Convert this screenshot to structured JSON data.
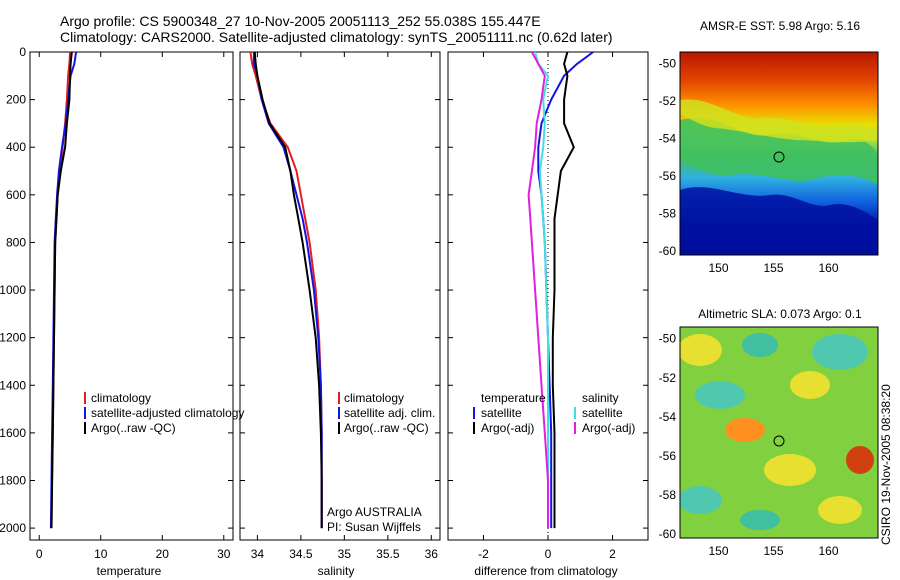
{
  "title": {
    "line1": "Argo profile: CS 5900348_27 10-Nov-2005 20051113_252 55.038S 155.447E",
    "line2": "Climatology: CARS2000. Satellite-adjusted climatology: synTS_20051111.nc (0.62d later)"
  },
  "colors": {
    "climatology": "#e02020",
    "satellite": "#1414e6",
    "argo": "#000000",
    "sal_satellite": "#40e0e0",
    "sal_argo": "#e020e0"
  },
  "chart_data": [
    {
      "type": "line",
      "name": "temperature",
      "xlabel": "temperature",
      "xlim": [
        -1.5,
        31.5
      ],
      "xticks": [
        "0",
        "10",
        "20",
        "30"
      ],
      "ylim": [
        0,
        2050
      ],
      "yticks": [
        "0",
        "200",
        "400",
        "600",
        "800",
        "1000",
        "1200",
        "1400",
        "1600",
        "1800",
        "2000"
      ],
      "legend": [
        "climatology",
        "satellite-adjusted climatology",
        "Argo(..raw -QC)"
      ],
      "series": [
        {
          "label": "climatology",
          "color_key": "climatology",
          "x": [
            5.0,
            4.9,
            4.7,
            4.5,
            4.2,
            3.8,
            3.4,
            3.0,
            2.8,
            2.6,
            2.5,
            2.4,
            2.3,
            2.2,
            2.1,
            2.0
          ],
          "y": [
            0,
            50,
            100,
            200,
            300,
            400,
            500,
            600,
            700,
            800,
            1000,
            1200,
            1400,
            1600,
            1800,
            2000
          ]
        },
        {
          "label": "satellite-adjusted climatology",
          "color_key": "satellite",
          "x": [
            6.0,
            5.7,
            5.1,
            4.7,
            4.3,
            3.7,
            3.2,
            2.9,
            2.7,
            2.5,
            2.4,
            2.3,
            2.2,
            2.1,
            2.0,
            1.9
          ],
          "y": [
            0,
            50,
            100,
            200,
            300,
            400,
            500,
            600,
            700,
            800,
            1000,
            1200,
            1400,
            1600,
            1800,
            2000
          ]
        },
        {
          "label": "Argo(..raw -QC)",
          "color_key": "argo",
          "x": [
            5.3,
            5.1,
            5.0,
            4.9,
            4.5,
            4.2,
            3.5,
            3.0,
            2.8,
            2.6,
            2.5,
            2.4,
            2.3,
            2.2,
            2.1,
            2.0
          ],
          "y": [
            0,
            50,
            100,
            200,
            300,
            400,
            500,
            600,
            700,
            800,
            1000,
            1200,
            1400,
            1600,
            1800,
            2000
          ]
        }
      ]
    },
    {
      "type": "line",
      "name": "salinity",
      "xlabel": "salinity",
      "xlim": [
        33.8,
        36.1
      ],
      "xticks": [
        "34",
        "34.5",
        "35",
        "35.5",
        "36"
      ],
      "ylim": [
        0,
        2050
      ],
      "legend": [
        "climatology",
        "satellite adj. clim.",
        "Argo(..raw -QC)"
      ],
      "annotations": [
        "Argo AUSTRALIA",
        "PI: Susan Wijffels"
      ],
      "series": [
        {
          "label": "climatology",
          "color_key": "climatology",
          "x": [
            33.92,
            33.94,
            33.98,
            34.05,
            34.15,
            34.35,
            34.45,
            34.5,
            34.55,
            34.6,
            34.67,
            34.71,
            34.73,
            34.74,
            34.74,
            34.74
          ],
          "y": [
            0,
            50,
            100,
            200,
            300,
            400,
            500,
            600,
            700,
            800,
            1000,
            1200,
            1400,
            1600,
            1800,
            2000
          ]
        },
        {
          "label": "satellite adj. clim.",
          "color_key": "satellite",
          "x": [
            33.96,
            33.96,
            34.0,
            34.05,
            34.13,
            34.3,
            34.38,
            34.45,
            34.52,
            34.57,
            34.65,
            34.7,
            34.73,
            34.74,
            34.74,
            34.74
          ],
          "y": [
            0,
            50,
            100,
            200,
            300,
            400,
            500,
            600,
            700,
            800,
            1000,
            1200,
            1400,
            1600,
            1800,
            2000
          ]
        },
        {
          "label": "Argo(..raw -QC)",
          "color_key": "argo",
          "x": [
            33.97,
            33.98,
            34.0,
            34.06,
            34.14,
            34.32,
            34.38,
            34.42,
            34.47,
            34.52,
            34.6,
            34.67,
            34.71,
            34.73,
            34.74,
            34.74
          ],
          "y": [
            0,
            50,
            100,
            200,
            300,
            400,
            500,
            600,
            700,
            800,
            1000,
            1200,
            1400,
            1600,
            1800,
            2000
          ]
        }
      ]
    },
    {
      "type": "line",
      "name": "difference",
      "xlabel": "difference from climatology",
      "xlim": [
        -3.1,
        3.1
      ],
      "xticks": [
        "-2",
        "0",
        "2"
      ],
      "ylim": [
        0,
        2050
      ],
      "legend_groups": [
        "temperature",
        "salinity"
      ],
      "legend": {
        "temperature": [
          "satellite",
          "Argo(-adj)"
        ],
        "salinity": [
          "satellite",
          "Argo(-adj)"
        ]
      },
      "series": [
        {
          "label": "temperature satellite",
          "color_key": "satellite",
          "x": [
            1.4,
            0.9,
            0.5,
            0.1,
            -0.2,
            -0.3,
            -0.3,
            -0.2,
            -0.15,
            -0.1,
            -0.05,
            0.0,
            0.05,
            0.1,
            0.1,
            0.1
          ],
          "y": [
            0,
            50,
            100,
            200,
            300,
            400,
            500,
            600,
            700,
            800,
            1000,
            1200,
            1400,
            1600,
            1800,
            2000
          ]
        },
        {
          "label": "temperature Argo(-adj)",
          "color_key": "argo",
          "x": [
            0.6,
            0.5,
            0.6,
            0.5,
            0.5,
            0.8,
            0.4,
            0.3,
            0.2,
            0.2,
            0.2,
            0.15,
            0.15,
            0.2,
            0.2,
            0.2
          ],
          "y": [
            0,
            50,
            100,
            200,
            300,
            400,
            500,
            600,
            700,
            800,
            1000,
            1200,
            1400,
            1600,
            1800,
            2000
          ]
        },
        {
          "label": "salinity satellite",
          "color_key": "sal_satellite",
          "x": [
            -0.4,
            -0.3,
            0.0,
            -0.15,
            -0.1,
            -0.15,
            -0.25,
            -0.2,
            -0.15,
            -0.1,
            -0.05,
            0.0,
            0.0,
            0.0,
            0.0,
            0.0
          ],
          "y": [
            0,
            50,
            100,
            200,
            300,
            400,
            500,
            600,
            700,
            800,
            1000,
            1200,
            1400,
            1600,
            1800,
            2000
          ]
        },
        {
          "label": "salinity Argo(-adj)",
          "color_key": "sal_argo",
          "x": [
            -0.5,
            -0.3,
            -0.1,
            -0.2,
            -0.35,
            -0.4,
            -0.5,
            -0.6,
            -0.55,
            -0.5,
            -0.4,
            -0.3,
            -0.2,
            -0.1,
            0.0,
            0.0
          ],
          "y": [
            0,
            50,
            100,
            200,
            300,
            400,
            500,
            600,
            700,
            800,
            1000,
            1200,
            1400,
            1600,
            1800,
            2000
          ]
        }
      ]
    },
    {
      "type": "heatmap",
      "name": "sst",
      "title": "AMSR-E SST: 5.98 Argo: 5.16",
      "xticks": [
        "150",
        "155",
        "160"
      ],
      "yticks": [
        "-50",
        "-52",
        "-54",
        "-56",
        "-58",
        "-60"
      ],
      "xlim": [
        146.5,
        164.5
      ],
      "ylim": [
        -60.2,
        -49.4
      ],
      "marker": {
        "x": 155.4,
        "y": -55.04
      }
    },
    {
      "type": "heatmap",
      "name": "sla",
      "title": "Altimetric SLA: 0.073 Argo: 0.1",
      "xticks": [
        "150",
        "155",
        "160"
      ],
      "yticks": [
        "-50",
        "-52",
        "-54",
        "-56",
        "-58",
        "-60"
      ],
      "xlim": [
        146.5,
        164.5
      ],
      "ylim": [
        -60.2,
        -49.4
      ],
      "marker": {
        "x": 155.4,
        "y": -55.04
      }
    }
  ],
  "side_label": "CSIRO 19-Nov-2005 08:38:20"
}
